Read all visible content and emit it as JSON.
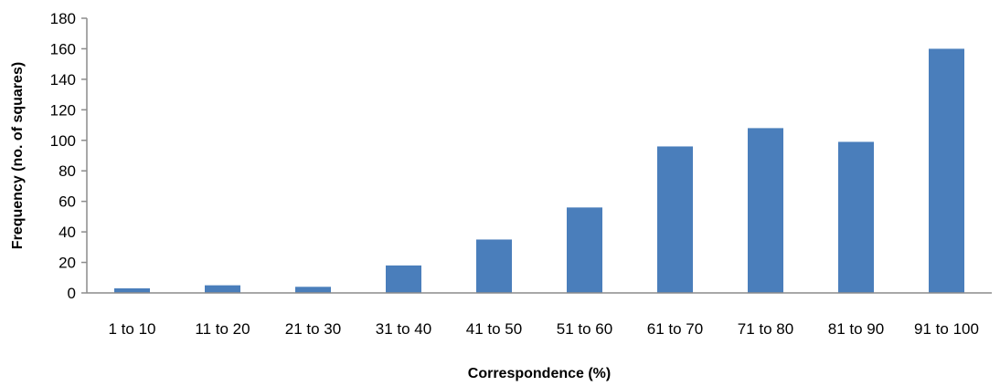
{
  "chart_data": {
    "type": "bar",
    "title": "",
    "xlabel": "Correspondence (%)",
    "ylabel": "Frequency (no. of squares)",
    "categories": [
      "1 to 10",
      "11 to 20",
      "21 to 30",
      "31 to 40",
      "41 to 50",
      "51 to 60",
      "61 to 70",
      "71 to 80",
      "81 to 90",
      "91 to 100"
    ],
    "values": [
      3,
      5,
      4,
      18,
      35,
      56,
      96,
      108,
      99,
      160
    ],
    "ylim": [
      0,
      180
    ],
    "yticks": [
      "0",
      "20",
      "40",
      "60",
      "80",
      "100",
      "120",
      "140",
      "160",
      "180"
    ],
    "grid": false,
    "legend": "none",
    "colors": {
      "bar": "#4a7ebb",
      "axis": "#8c8c8c",
      "text": "#000000"
    }
  }
}
